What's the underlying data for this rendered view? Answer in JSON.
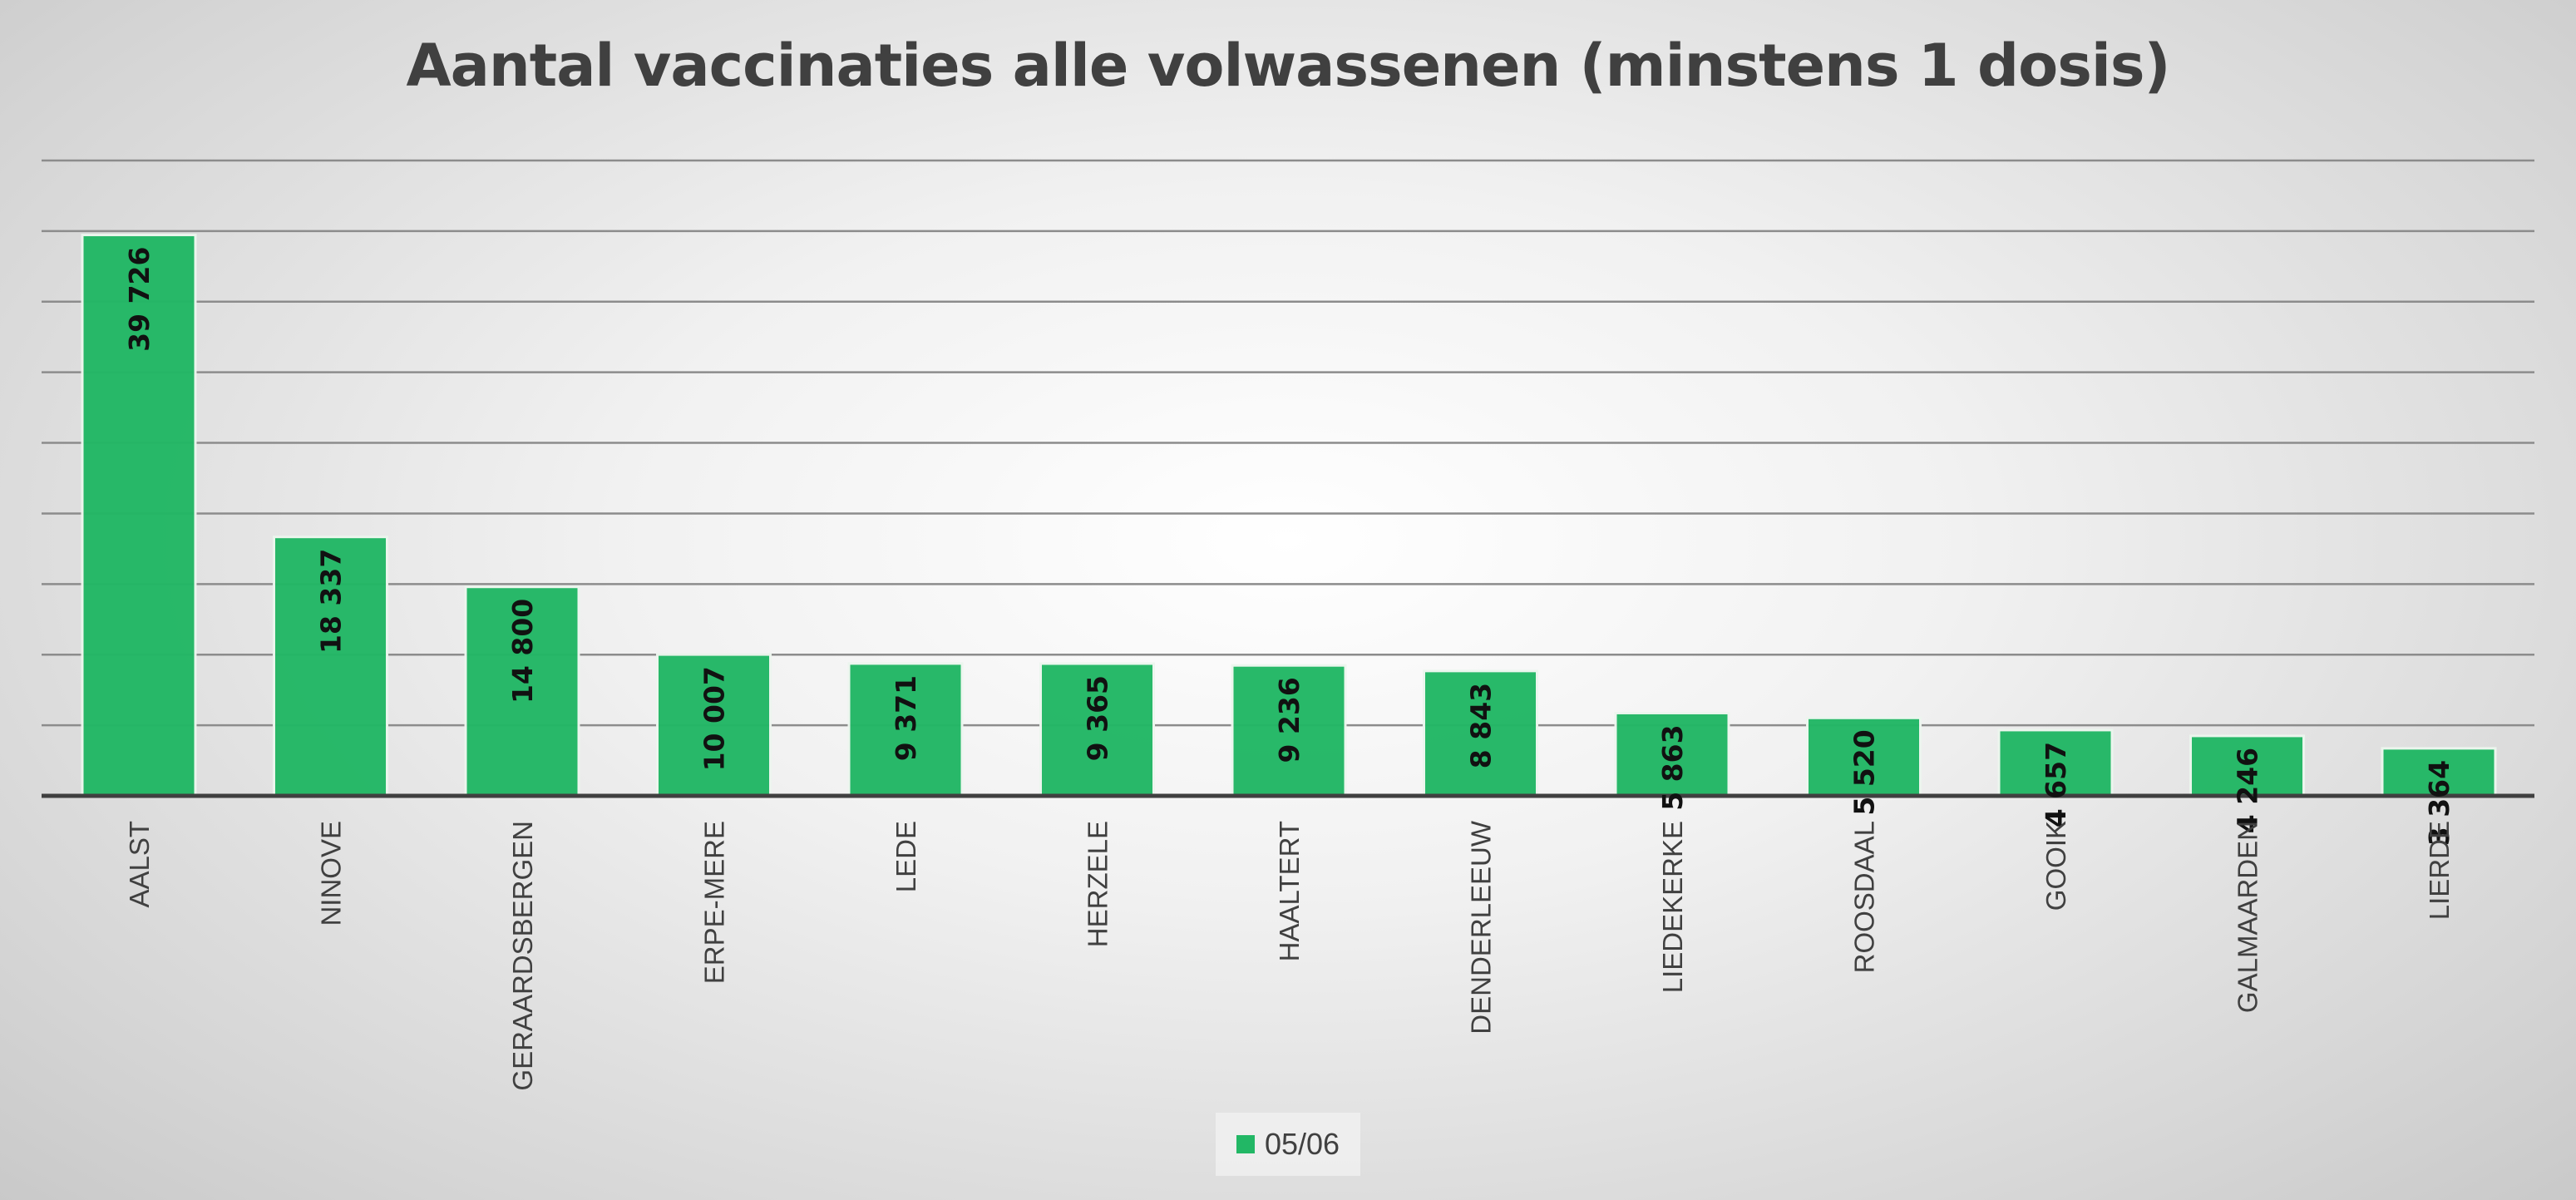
{
  "chart_data": {
    "type": "bar",
    "title": "Aantal vaccinaties alle volwassenen (minstens 1 dosis)",
    "categories": [
      "AALST",
      "NINOVE",
      "GERAARDSBERGEN",
      "ERPE-MERE",
      "LEDE",
      "HERZELE",
      "HAALTERT",
      "DENDERLEEUW",
      "LIEDEKERKE",
      "ROOSDAAL",
      "GOOIK",
      "GALMAARDEN",
      "LIERDE"
    ],
    "series": [
      {
        "name": "05/06",
        "values": [
          39726,
          18337,
          14800,
          10007,
          9371,
          9365,
          9236,
          8843,
          5863,
          5520,
          4657,
          4246,
          3364
        ],
        "labels": [
          "39 726",
          "18 337",
          "14 800",
          "10 007",
          "9 371",
          "9 365",
          "9 236",
          "8 843",
          "5 863",
          "5 520",
          "4 657",
          "4 246",
          "3 364"
        ],
        "color": "#22b765"
      }
    ],
    "ylim": [
      0,
      45000
    ],
    "ytick_step": 5000,
    "y_tick_labels_shown": false,
    "grid": true,
    "legend_position": "bottom",
    "xlabel": "",
    "ylabel": ""
  },
  "colors": {
    "bar": "#22b765",
    "gridline": "#8c8c8c",
    "axis": "#404040",
    "text": "#404040"
  }
}
